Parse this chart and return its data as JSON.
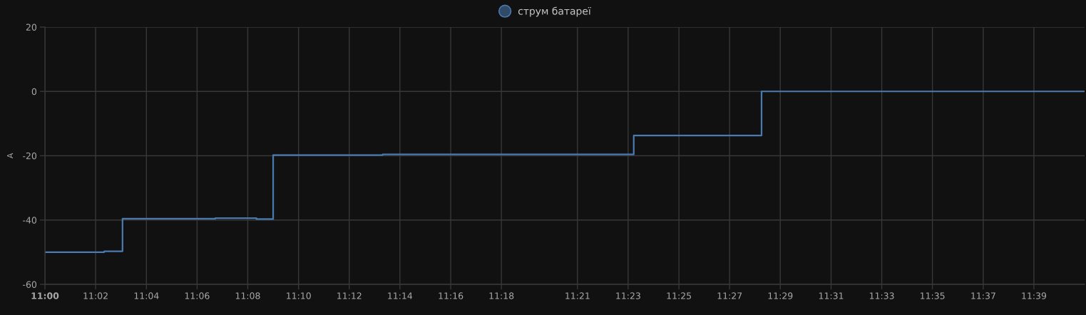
{
  "chart_data": {
    "type": "step",
    "ylabel": "A",
    "x": [
      11.0,
      11.039,
      11.051,
      11.112,
      11.139,
      11.15,
      11.222,
      11.387,
      11.471,
      11.6833
    ],
    "series": [
      {
        "name": "струм батареї",
        "color": "#4a7ab0",
        "values": [
          -50,
          -49.7,
          -39.6,
          -39.4,
          -39.7,
          -19.8,
          -19.6,
          -13.7,
          0,
          0
        ]
      }
    ],
    "xlim": [
      11.0,
      11.6833
    ],
    "xticks": [
      {
        "value": 11.0,
        "label": "11:00"
      },
      {
        "value": 11.0333,
        "label": "11:02"
      },
      {
        "value": 11.0667,
        "label": "11:04"
      },
      {
        "value": 11.1,
        "label": "11:06"
      },
      {
        "value": 11.1333,
        "label": "11:08"
      },
      {
        "value": 11.1667,
        "label": "11:10"
      },
      {
        "value": 11.2,
        "label": "11:12"
      },
      {
        "value": 11.2333,
        "label": "11:14"
      },
      {
        "value": 11.2667,
        "label": "11:16"
      },
      {
        "value": 11.3,
        "label": "11:18"
      },
      {
        "value": 11.35,
        "label": "11:21"
      },
      {
        "value": 11.3833,
        "label": "11:23"
      },
      {
        "value": 11.4167,
        "label": "11:25"
      },
      {
        "value": 11.45,
        "label": "11:27"
      },
      {
        "value": 11.4833,
        "label": "11:29"
      },
      {
        "value": 11.5167,
        "label": "11:31"
      },
      {
        "value": 11.55,
        "label": "11:33"
      },
      {
        "value": 11.5833,
        "label": "11:35"
      },
      {
        "value": 11.6167,
        "label": "11:37"
      },
      {
        "value": 11.65,
        "label": "11:39"
      }
    ],
    "ylim": [
      -60,
      20
    ],
    "yticks": [
      -60,
      -40,
      -20,
      0,
      20
    ],
    "grid": true,
    "legend": "top",
    "marker": "none",
    "line_style": "solid"
  }
}
